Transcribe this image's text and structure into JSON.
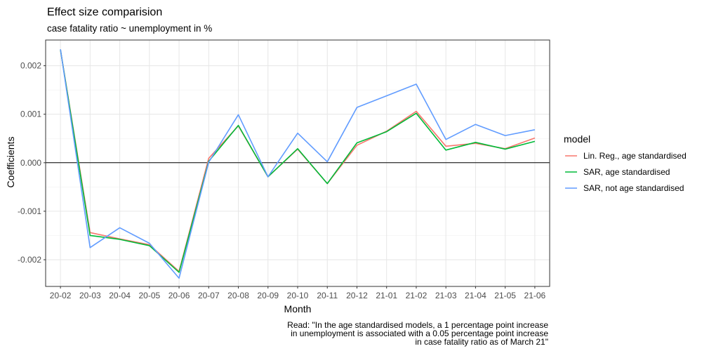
{
  "chart_data": {
    "type": "line",
    "title": "Effect size comparision",
    "subtitle": "case fatality ratio ~ unemployment in %",
    "xlabel": "Month",
    "ylabel": "Coefficients",
    "categories": [
      "20-02",
      "20-03",
      "20-04",
      "20-05",
      "20-06",
      "20-07",
      "20-08",
      "20-09",
      "20-10",
      "20-11",
      "20-12",
      "21-01",
      "21-02",
      "21-03",
      "21-04",
      "21-05",
      "21-06"
    ],
    "ylim": [
      -0.00255,
      0.00253
    ],
    "yticks": [
      0.002,
      0.001,
      0.0,
      -0.001,
      -0.002
    ],
    "ytick_labels": [
      "0.002",
      "0.001",
      "0.000",
      "-0.001",
      "-0.002"
    ],
    "reference_line_y": 0,
    "grid": true,
    "legend_title": "model",
    "legend_position": "right",
    "series": [
      {
        "name": "Lin. Reg., age standardised",
        "color": "#F8766D",
        "values": [
          0.00233,
          -0.00144,
          -0.00157,
          -0.00169,
          -0.00224,
          9e-05,
          0.00076,
          -0.00029,
          0.00028,
          -0.00043,
          0.00036,
          0.00065,
          0.00106,
          0.00034,
          0.0004,
          0.00029,
          0.00051
        ]
      },
      {
        "name": "SAR, age standardised",
        "color": "#00BA38",
        "values": [
          0.00233,
          -0.0015,
          -0.00158,
          -0.00171,
          -0.00226,
          3e-05,
          0.00077,
          -0.00029,
          0.00029,
          -0.00043,
          0.00041,
          0.00064,
          0.00102,
          0.00026,
          0.00042,
          0.00028,
          0.00044
        ]
      },
      {
        "name": "SAR, not age standardised",
        "color": "#619CFF",
        "values": [
          0.00234,
          -0.00175,
          -0.00134,
          -0.00166,
          -0.00238,
          1e-05,
          0.00099,
          -0.00029,
          0.00061,
          2e-05,
          0.00114,
          0.00138,
          0.00162,
          0.00048,
          0.00079,
          0.00056,
          0.00068
        ]
      }
    ],
    "caption_lines": [
      "Read: \"In the age standardised models, a 1 percentage point increase",
      "in unemployment is associated with a 0.05 percentage point increase",
      "in case fatality ratio as of March 21\""
    ]
  }
}
